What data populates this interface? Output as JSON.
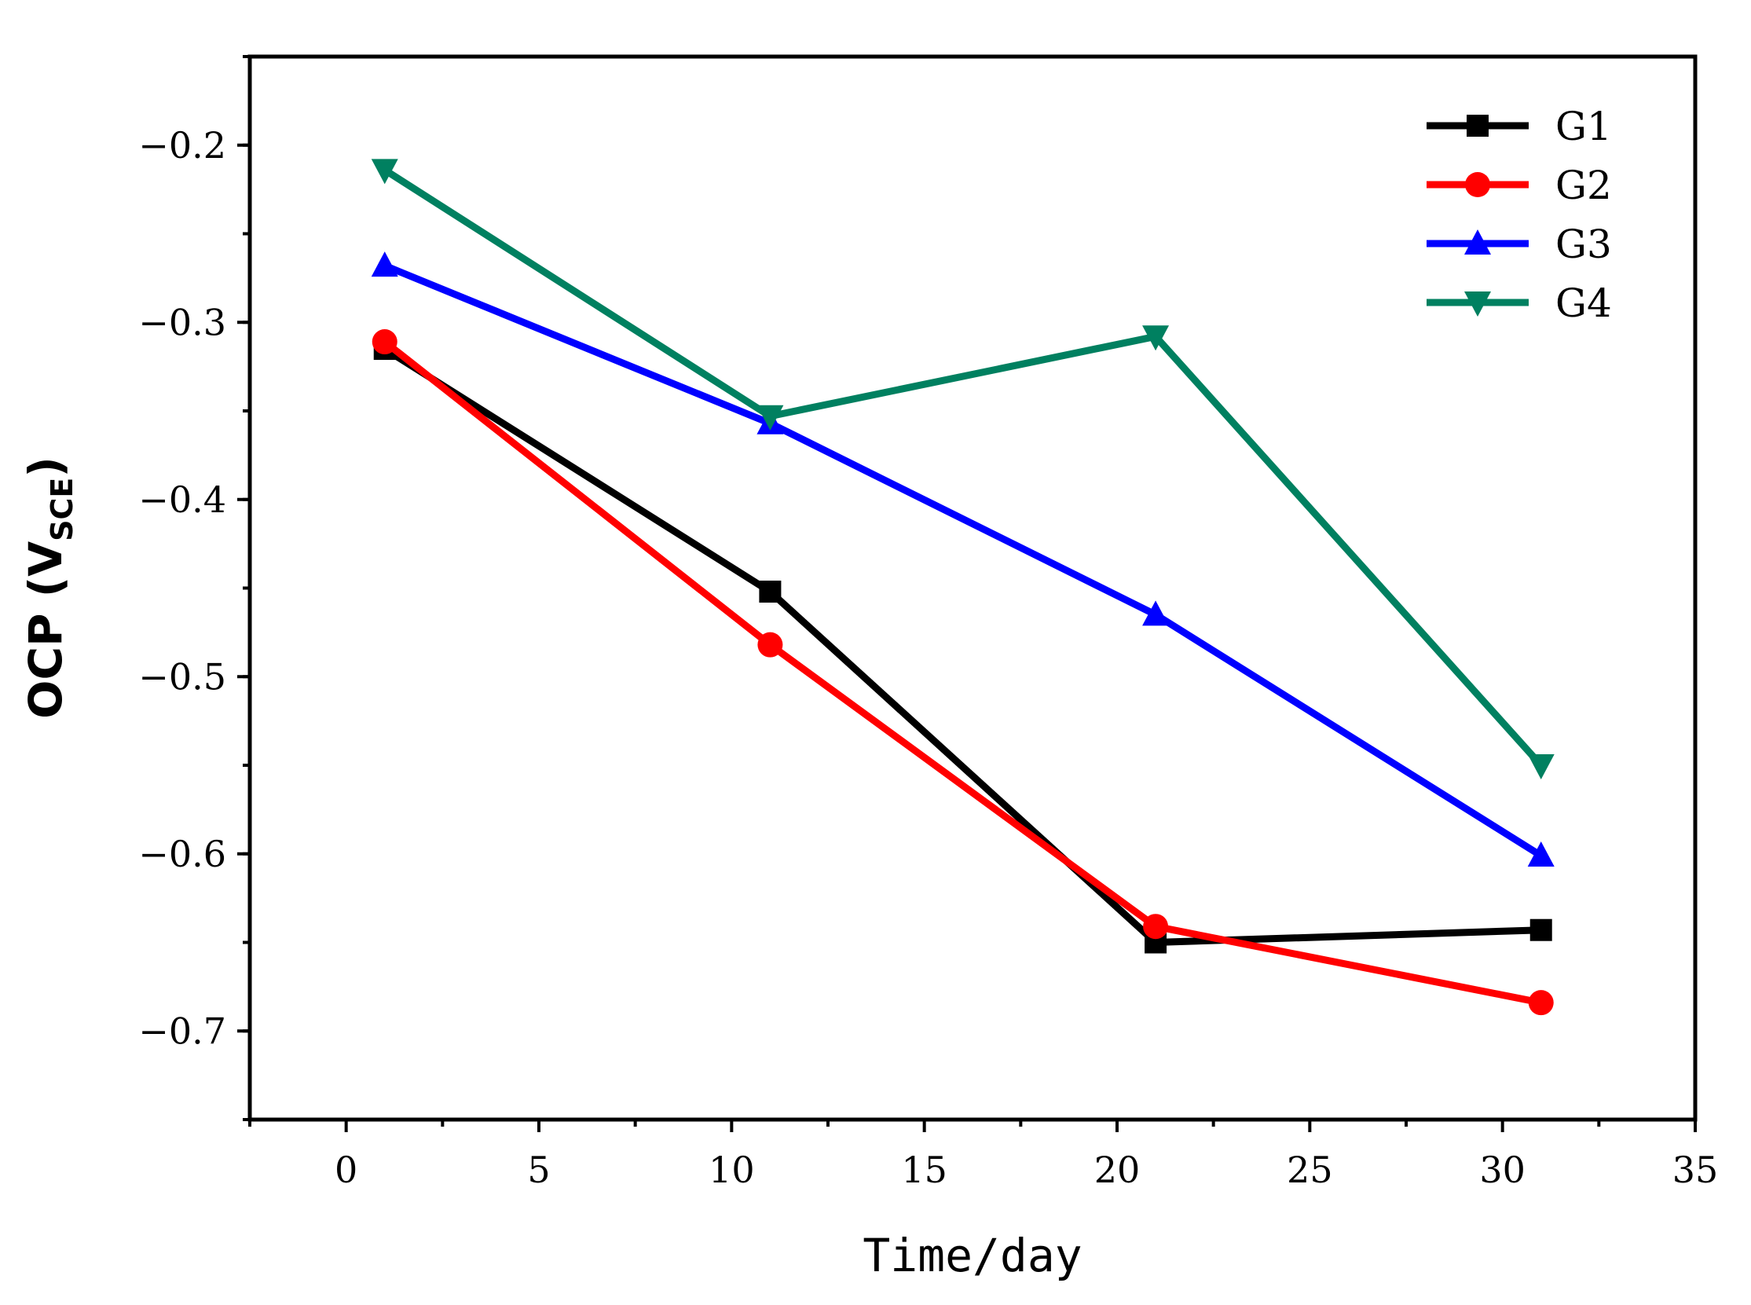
{
  "chart_data": {
    "type": "line",
    "title": "",
    "xlabel": "Time/day",
    "ylabel": {
      "prefix": "OCP (V",
      "subscript": "SCE",
      "suffix": ")"
    },
    "xlim": [
      -2.5,
      35
    ],
    "ylim": [
      -0.75,
      -0.15
    ],
    "xticks": [
      0,
      5,
      10,
      15,
      20,
      25,
      30,
      35
    ],
    "xtick_labels": [
      "0",
      "5",
      "10",
      "15",
      "20",
      "25",
      "30",
      "35"
    ],
    "yticks": [
      -0.2,
      -0.3,
      -0.4,
      -0.5,
      -0.6,
      -0.7
    ],
    "ytick_labels": [
      "−0.2",
      "−0.3",
      "−0.4",
      "−0.5",
      "−0.6",
      "−0.7"
    ],
    "x": [
      1,
      11,
      21,
      31
    ],
    "legend_position": "top-right",
    "series": [
      {
        "name": "G1",
        "color": "#000000",
        "marker": "square",
        "values": [
          -0.315,
          -0.452,
          -0.65,
          -0.643
        ]
      },
      {
        "name": "G2",
        "color": "#ff0000",
        "marker": "circle",
        "values": [
          -0.311,
          -0.482,
          -0.641,
          -0.684
        ]
      },
      {
        "name": "G3",
        "color": "#0000ff",
        "marker": "triangle-up",
        "values": [
          -0.268,
          -0.357,
          -0.465,
          -0.601
        ]
      },
      {
        "name": "G4",
        "color": "#008060",
        "marker": "triangle-down",
        "values": [
          -0.214,
          -0.353,
          -0.308,
          -0.55
        ]
      }
    ],
    "grid": false
  }
}
